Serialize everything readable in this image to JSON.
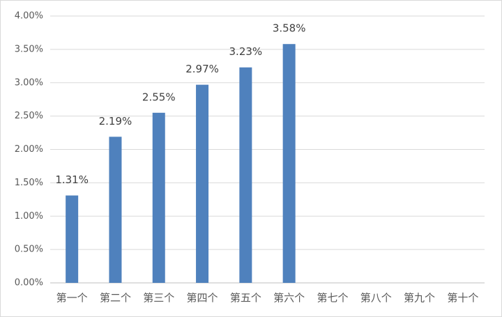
{
  "chart_data": {
    "type": "bar",
    "categories": [
      "第一个",
      "第二个",
      "第三个",
      "第四个",
      "第五个",
      "第六个",
      "第七个",
      "第八个",
      "第九个",
      "第十个"
    ],
    "values": [
      1.31,
      2.19,
      2.55,
      2.97,
      3.23,
      3.58,
      null,
      null,
      null,
      null
    ],
    "value_labels": [
      "1.31%",
      "2.19%",
      "2.55%",
      "2.97%",
      "3.23%",
      "3.58%",
      null,
      null,
      null,
      null
    ],
    "color": "#4f81bd",
    "ylim": [
      0,
      4
    ],
    "yticks": [
      {
        "value": 0,
        "label": "0.00%"
      },
      {
        "value": 0.5,
        "label": "0.50%"
      },
      {
        "value": 1,
        "label": "1.00%"
      },
      {
        "value": 1.5,
        "label": "1.50%"
      },
      {
        "value": 2,
        "label": "2.00%"
      },
      {
        "value": 2.5,
        "label": "2.50%"
      },
      {
        "value": 3,
        "label": "3.00%"
      },
      {
        "value": 3.5,
        "label": "3.50%"
      },
      {
        "value": 4,
        "label": "4.00%"
      }
    ],
    "grid": true
  }
}
